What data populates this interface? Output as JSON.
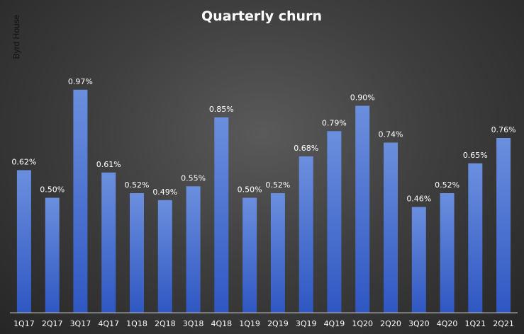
{
  "chart_data": {
    "type": "bar",
    "title": "Quarterly  churn",
    "side_label": "Byrd House",
    "categories": [
      "1Q17",
      "2Q17",
      "3Q17",
      "4Q17",
      "1Q18",
      "2Q18",
      "3Q18",
      "4Q18",
      "1Q19",
      "2Q19",
      "3Q19",
      "4Q19",
      "1Q20",
      "2Q20",
      "3Q20",
      "4Q20",
      "1Q21",
      "2Q21"
    ],
    "values": [
      0.62,
      0.5,
      0.97,
      0.61,
      0.52,
      0.49,
      0.55,
      0.85,
      0.5,
      0.52,
      0.68,
      0.79,
      0.9,
      0.74,
      0.46,
      0.52,
      0.65,
      0.76
    ],
    "data_labels": [
      "0.62%",
      "0.50%",
      "0.97%",
      "0.61%",
      "0.52%",
      "0.49%",
      "0.55%",
      "0.85%",
      "0.50%",
      "0.52%",
      "0.68%",
      "0.79%",
      "0.90%",
      "0.74%",
      "0.46%",
      "0.52%",
      "0.65%",
      "0.76%"
    ],
    "xlabel": "",
    "ylabel": "",
    "ylim": [
      0,
      1.0
    ],
    "grid": false,
    "colors": {
      "bar_top": "#6b8fde",
      "bar_bottom": "#2f57c2",
      "text": "#ffffff",
      "axis": "#bfbfbf"
    }
  }
}
